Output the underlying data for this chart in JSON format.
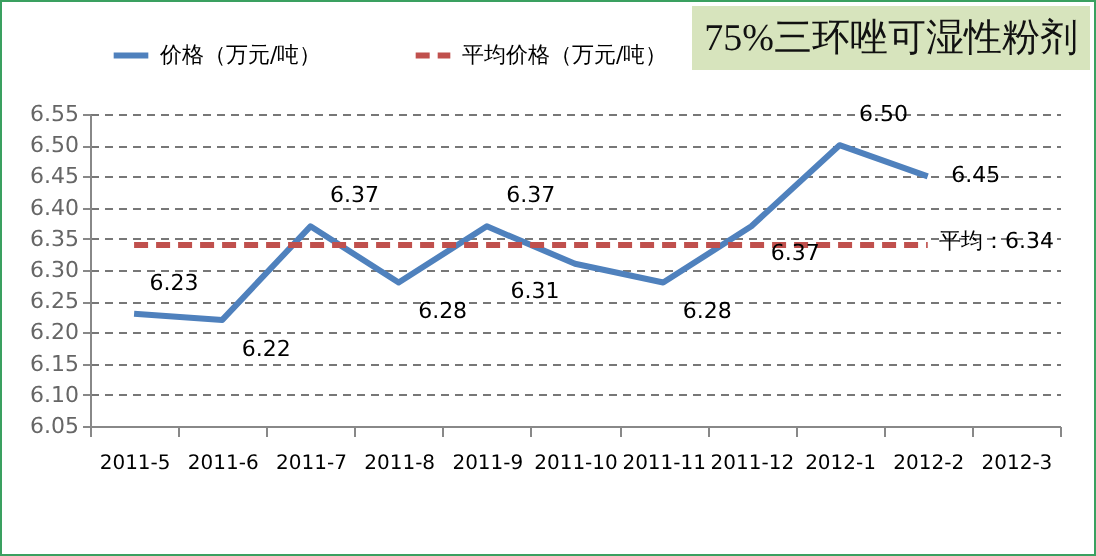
{
  "chart_data": {
    "type": "line",
    "title": "75%三环唑可湿性粉剂",
    "categories": [
      "2011-5",
      "2011-6",
      "2011-7",
      "2011-8",
      "2011-9",
      "2011-10",
      "2011-11",
      "2011-12",
      "2012-1",
      "2012-2",
      "2012-3"
    ],
    "series": [
      {
        "name": "价格（万元/吨）",
        "color": "#4f81bd",
        "line_style": "solid",
        "values": [
          6.23,
          6.22,
          6.37,
          6.28,
          6.37,
          6.31,
          6.28,
          6.37,
          6.5,
          6.45,
          null
        ],
        "value_labels": [
          "6.23",
          "6.22",
          "6.37",
          "6.28",
          "6.37",
          "6.31",
          "6.28",
          "6.37",
          "6.50",
          "6.45",
          null
        ]
      },
      {
        "name": "平均价格（万元/吨）",
        "color": "#c0504d",
        "line_style": "dashed",
        "values": [
          6.34,
          6.34,
          6.34,
          6.34,
          6.34,
          6.34,
          6.34,
          6.34,
          6.34,
          6.34,
          null
        ]
      }
    ],
    "annotations": [
      "平均：6.34"
    ],
    "ylim": [
      6.05,
      6.55
    ],
    "yticks": [
      6.05,
      {
        "value": 6.1,
        "label": "6.10"
      },
      6.15,
      {
        "value": 6.2,
        "label": "6.20"
      },
      6.25,
      {
        "value": 6.3,
        "label": "6.30"
      },
      6.35,
      {
        "value": 6.4,
        "label": "6.40"
      },
      6.45,
      {
        "value": 6.5,
        "label": "6.50"
      },
      6.55
    ],
    "grid": "y",
    "legend": "top left",
    "marker": "none"
  }
}
